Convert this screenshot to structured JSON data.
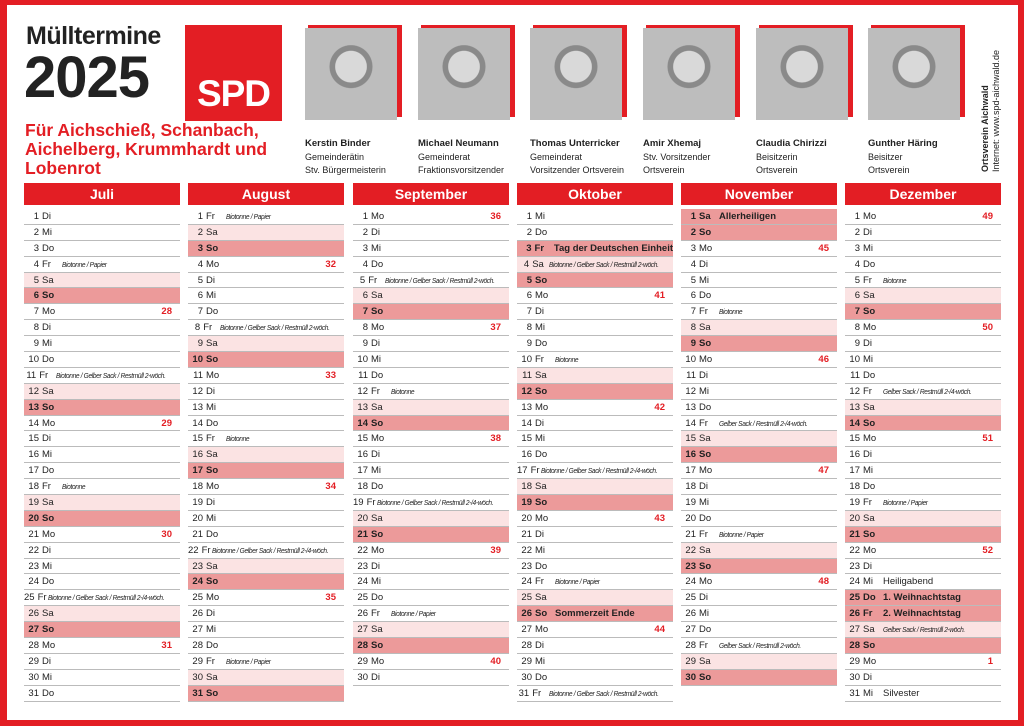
{
  "header": {
    "title": "Mülltermine",
    "year": "2025",
    "subtitle": "Für Aichschieß, Schanbach, Aichelberg, Krummhardt und Lobenrot",
    "logo": "SPD",
    "org": "Ortsverein Aichwald",
    "web": "Internet: www.spd-aichwald.de"
  },
  "people": [
    {
      "name": "Kerstin Binder",
      "role1": "Gemeinderätin",
      "role2": "Stv. Bürgermeisterin"
    },
    {
      "name": "Michael Neumann",
      "role1": "Gemeinderat",
      "role2": "Fraktionsvorsitzender"
    },
    {
      "name": "Thomas Unterricker",
      "role1": "Gemeinderat",
      "role2": "Vorsitzender Ortsverein"
    },
    {
      "name": "Amir Xhemaj",
      "role1": "Stv. Vorsitzender",
      "role2": "Ortsverein"
    },
    {
      "name": "Claudia Chirizzi",
      "role1": "Beisitzerin",
      "role2": "Ortsverein"
    },
    {
      "name": "Gunther Häring",
      "role1": "Beisitzer",
      "role2": "Ortsverein"
    }
  ],
  "colors": {
    "brand": "#e31e24",
    "saturday": "#fbe3e3",
    "sunday": "#ec9a9a"
  },
  "months": [
    {
      "name": "Juli",
      "days": [
        [
          1,
          "Di"
        ],
        [
          2,
          "Mi"
        ],
        [
          3,
          "Do"
        ],
        [
          4,
          "Fr",
          "Biotonne / Papier"
        ],
        [
          5,
          "Sa"
        ],
        [
          6,
          "So"
        ],
        [
          7,
          "Mo",
          "",
          "28"
        ],
        [
          8,
          "Di"
        ],
        [
          9,
          "Mi"
        ],
        [
          10,
          "Do"
        ],
        [
          11,
          "Fr",
          "Biotonne / Gelber Sack / Restmüll 2-wöch."
        ],
        [
          12,
          "Sa"
        ],
        [
          13,
          "So"
        ],
        [
          14,
          "Mo",
          "",
          "29"
        ],
        [
          15,
          "Di"
        ],
        [
          16,
          "Mi"
        ],
        [
          17,
          "Do"
        ],
        [
          18,
          "Fr",
          "Biotonne"
        ],
        [
          19,
          "Sa"
        ],
        [
          20,
          "So"
        ],
        [
          21,
          "Mo",
          "",
          "30"
        ],
        [
          22,
          "Di"
        ],
        [
          23,
          "Mi"
        ],
        [
          24,
          "Do"
        ],
        [
          25,
          "Fr",
          "Biotonne / Gelber Sack / Restmüll 2-/4-wöch."
        ],
        [
          26,
          "Sa"
        ],
        [
          27,
          "So"
        ],
        [
          28,
          "Mo",
          "",
          "31"
        ],
        [
          29,
          "Di"
        ],
        [
          30,
          "Mi"
        ],
        [
          31,
          "Do"
        ]
      ]
    },
    {
      "name": "August",
      "days": [
        [
          1,
          "Fr",
          "Biotonne / Papier"
        ],
        [
          2,
          "Sa"
        ],
        [
          3,
          "So"
        ],
        [
          4,
          "Mo",
          "",
          "32"
        ],
        [
          5,
          "Di"
        ],
        [
          6,
          "Mi"
        ],
        [
          7,
          "Do"
        ],
        [
          8,
          "Fr",
          "Biotonne / Gelber Sack / Restmüll 2-wöch."
        ],
        [
          9,
          "Sa"
        ],
        [
          10,
          "So"
        ],
        [
          11,
          "Mo",
          "",
          "33"
        ],
        [
          12,
          "Di"
        ],
        [
          13,
          "Mi"
        ],
        [
          14,
          "Do"
        ],
        [
          15,
          "Fr",
          "Biotonne"
        ],
        [
          16,
          "Sa"
        ],
        [
          17,
          "So"
        ],
        [
          18,
          "Mo",
          "",
          "34"
        ],
        [
          19,
          "Di"
        ],
        [
          20,
          "Mi"
        ],
        [
          21,
          "Do"
        ],
        [
          22,
          "Fr",
          "Biotonne / Gelber Sack / Restmüll 2-/4-wöch."
        ],
        [
          23,
          "Sa"
        ],
        [
          24,
          "So"
        ],
        [
          25,
          "Mo",
          "",
          "35"
        ],
        [
          26,
          "Di"
        ],
        [
          27,
          "Mi"
        ],
        [
          28,
          "Do"
        ],
        [
          29,
          "Fr",
          "Biotonne / Papier"
        ],
        [
          30,
          "Sa"
        ],
        [
          31,
          "So"
        ]
      ]
    },
    {
      "name": "September",
      "days": [
        [
          1,
          "Mo",
          "",
          "36"
        ],
        [
          2,
          "Di"
        ],
        [
          3,
          "Mi"
        ],
        [
          4,
          "Do"
        ],
        [
          5,
          "Fr",
          "Biotonne / Gelber Sack / Restmüll 2-wöch."
        ],
        [
          6,
          "Sa"
        ],
        [
          7,
          "So"
        ],
        [
          8,
          "Mo",
          "",
          "37"
        ],
        [
          9,
          "Di"
        ],
        [
          10,
          "Mi"
        ],
        [
          11,
          "Do"
        ],
        [
          12,
          "Fr",
          "Biotonne"
        ],
        [
          13,
          "Sa"
        ],
        [
          14,
          "So"
        ],
        [
          15,
          "Mo",
          "",
          "38"
        ],
        [
          16,
          "Di"
        ],
        [
          17,
          "Mi"
        ],
        [
          18,
          "Do"
        ],
        [
          19,
          "Fr",
          "Biotonne / Gelber Sack / Restmüll 2-/4-wöch."
        ],
        [
          20,
          "Sa"
        ],
        [
          21,
          "So"
        ],
        [
          22,
          "Mo",
          "",
          "39"
        ],
        [
          23,
          "Di"
        ],
        [
          24,
          "Mi"
        ],
        [
          25,
          "Do"
        ],
        [
          26,
          "Fr",
          "Biotonne / Papier"
        ],
        [
          27,
          "Sa"
        ],
        [
          28,
          "So"
        ],
        [
          29,
          "Mo",
          "",
          "40"
        ],
        [
          30,
          "Di"
        ]
      ]
    },
    {
      "name": "Oktober",
      "days": [
        [
          1,
          "Mi"
        ],
        [
          2,
          "Do"
        ],
        [
          3,
          "Fr",
          "",
          "",
          "Tag der Deutschen Einheit"
        ],
        [
          4,
          "Sa",
          "Biotonne / Gelber Sack / Restmüll 2-wöch."
        ],
        [
          5,
          "So"
        ],
        [
          6,
          "Mo",
          "",
          "41"
        ],
        [
          7,
          "Di"
        ],
        [
          8,
          "Mi"
        ],
        [
          9,
          "Do"
        ],
        [
          10,
          "Fr",
          "Biotonne"
        ],
        [
          11,
          "Sa"
        ],
        [
          12,
          "So"
        ],
        [
          13,
          "Mo",
          "",
          "42"
        ],
        [
          14,
          "Di"
        ],
        [
          15,
          "Mi"
        ],
        [
          16,
          "Do"
        ],
        [
          17,
          "Fr",
          "Biotonne / Gelber Sack / Restmüll 2-/4-wöch."
        ],
        [
          18,
          "Sa"
        ],
        [
          19,
          "So"
        ],
        [
          20,
          "Mo",
          "",
          "43"
        ],
        [
          21,
          "Di"
        ],
        [
          22,
          "Mi"
        ],
        [
          23,
          "Do"
        ],
        [
          24,
          "Fr",
          "Biotonne / Papier"
        ],
        [
          25,
          "Sa"
        ],
        [
          26,
          "So",
          "",
          "",
          "Sommerzeit Ende"
        ],
        [
          27,
          "Mo",
          "",
          "44"
        ],
        [
          28,
          "Di"
        ],
        [
          29,
          "Mi"
        ],
        [
          30,
          "Do"
        ],
        [
          31,
          "Fr",
          "Biotonne / Gelber Sack / Restmüll 2-wöch."
        ]
      ]
    },
    {
      "name": "November",
      "days": [
        [
          1,
          "Sa",
          "",
          "",
          "Allerheiligen"
        ],
        [
          2,
          "So"
        ],
        [
          3,
          "Mo",
          "",
          "45"
        ],
        [
          4,
          "Di"
        ],
        [
          5,
          "Mi"
        ],
        [
          6,
          "Do"
        ],
        [
          7,
          "Fr",
          "Biotonne"
        ],
        [
          8,
          "Sa"
        ],
        [
          9,
          "So"
        ],
        [
          10,
          "Mo",
          "",
          "46"
        ],
        [
          11,
          "Di"
        ],
        [
          12,
          "Mi"
        ],
        [
          13,
          "Do"
        ],
        [
          14,
          "Fr",
          "Gelber Sack / Restmüll 2-/4-wöch."
        ],
        [
          15,
          "Sa"
        ],
        [
          16,
          "So"
        ],
        [
          17,
          "Mo",
          "",
          "47"
        ],
        [
          18,
          "Di"
        ],
        [
          19,
          "Mi"
        ],
        [
          20,
          "Do"
        ],
        [
          21,
          "Fr",
          "Biotonne / Papier"
        ],
        [
          22,
          "Sa"
        ],
        [
          23,
          "So"
        ],
        [
          24,
          "Mo",
          "",
          "48"
        ],
        [
          25,
          "Di"
        ],
        [
          26,
          "Mi"
        ],
        [
          27,
          "Do"
        ],
        [
          28,
          "Fr",
          "Gelber Sack / Restmüll 2-wöch."
        ],
        [
          29,
          "Sa"
        ],
        [
          30,
          "So"
        ]
      ]
    },
    {
      "name": "Dezember",
      "days": [
        [
          1,
          "Mo",
          "",
          "49"
        ],
        [
          2,
          "Di"
        ],
        [
          3,
          "Mi"
        ],
        [
          4,
          "Do"
        ],
        [
          5,
          "Fr",
          "Biotonne"
        ],
        [
          6,
          "Sa"
        ],
        [
          7,
          "So"
        ],
        [
          8,
          "Mo",
          "",
          "50"
        ],
        [
          9,
          "Di"
        ],
        [
          10,
          "Mi"
        ],
        [
          11,
          "Do"
        ],
        [
          12,
          "Fr",
          "Gelber Sack / Restmüll 2-/4-wöch."
        ],
        [
          13,
          "Sa"
        ],
        [
          14,
          "So"
        ],
        [
          15,
          "Mo",
          "",
          "51"
        ],
        [
          16,
          "Di"
        ],
        [
          17,
          "Mi"
        ],
        [
          18,
          "Do"
        ],
        [
          19,
          "Fr",
          "Biotonne / Papier"
        ],
        [
          20,
          "Sa"
        ],
        [
          21,
          "So"
        ],
        [
          22,
          "Mo",
          "",
          "52"
        ],
        [
          23,
          "Di"
        ],
        [
          24,
          "Mi",
          "",
          "",
          "Heiligabend"
        ],
        [
          25,
          "Do",
          "",
          "",
          "1. Weihnachtstag"
        ],
        [
          26,
          "Fr",
          "",
          "",
          "2. Weihnachtstag"
        ],
        [
          27,
          "Sa",
          "Gelber Sack / Restmüll 2-wöch."
        ],
        [
          28,
          "So"
        ],
        [
          29,
          "Mo",
          "",
          "1"
        ],
        [
          30,
          "Di"
        ],
        [
          31,
          "Mi",
          "",
          "",
          "Silvester"
        ]
      ]
    }
  ]
}
